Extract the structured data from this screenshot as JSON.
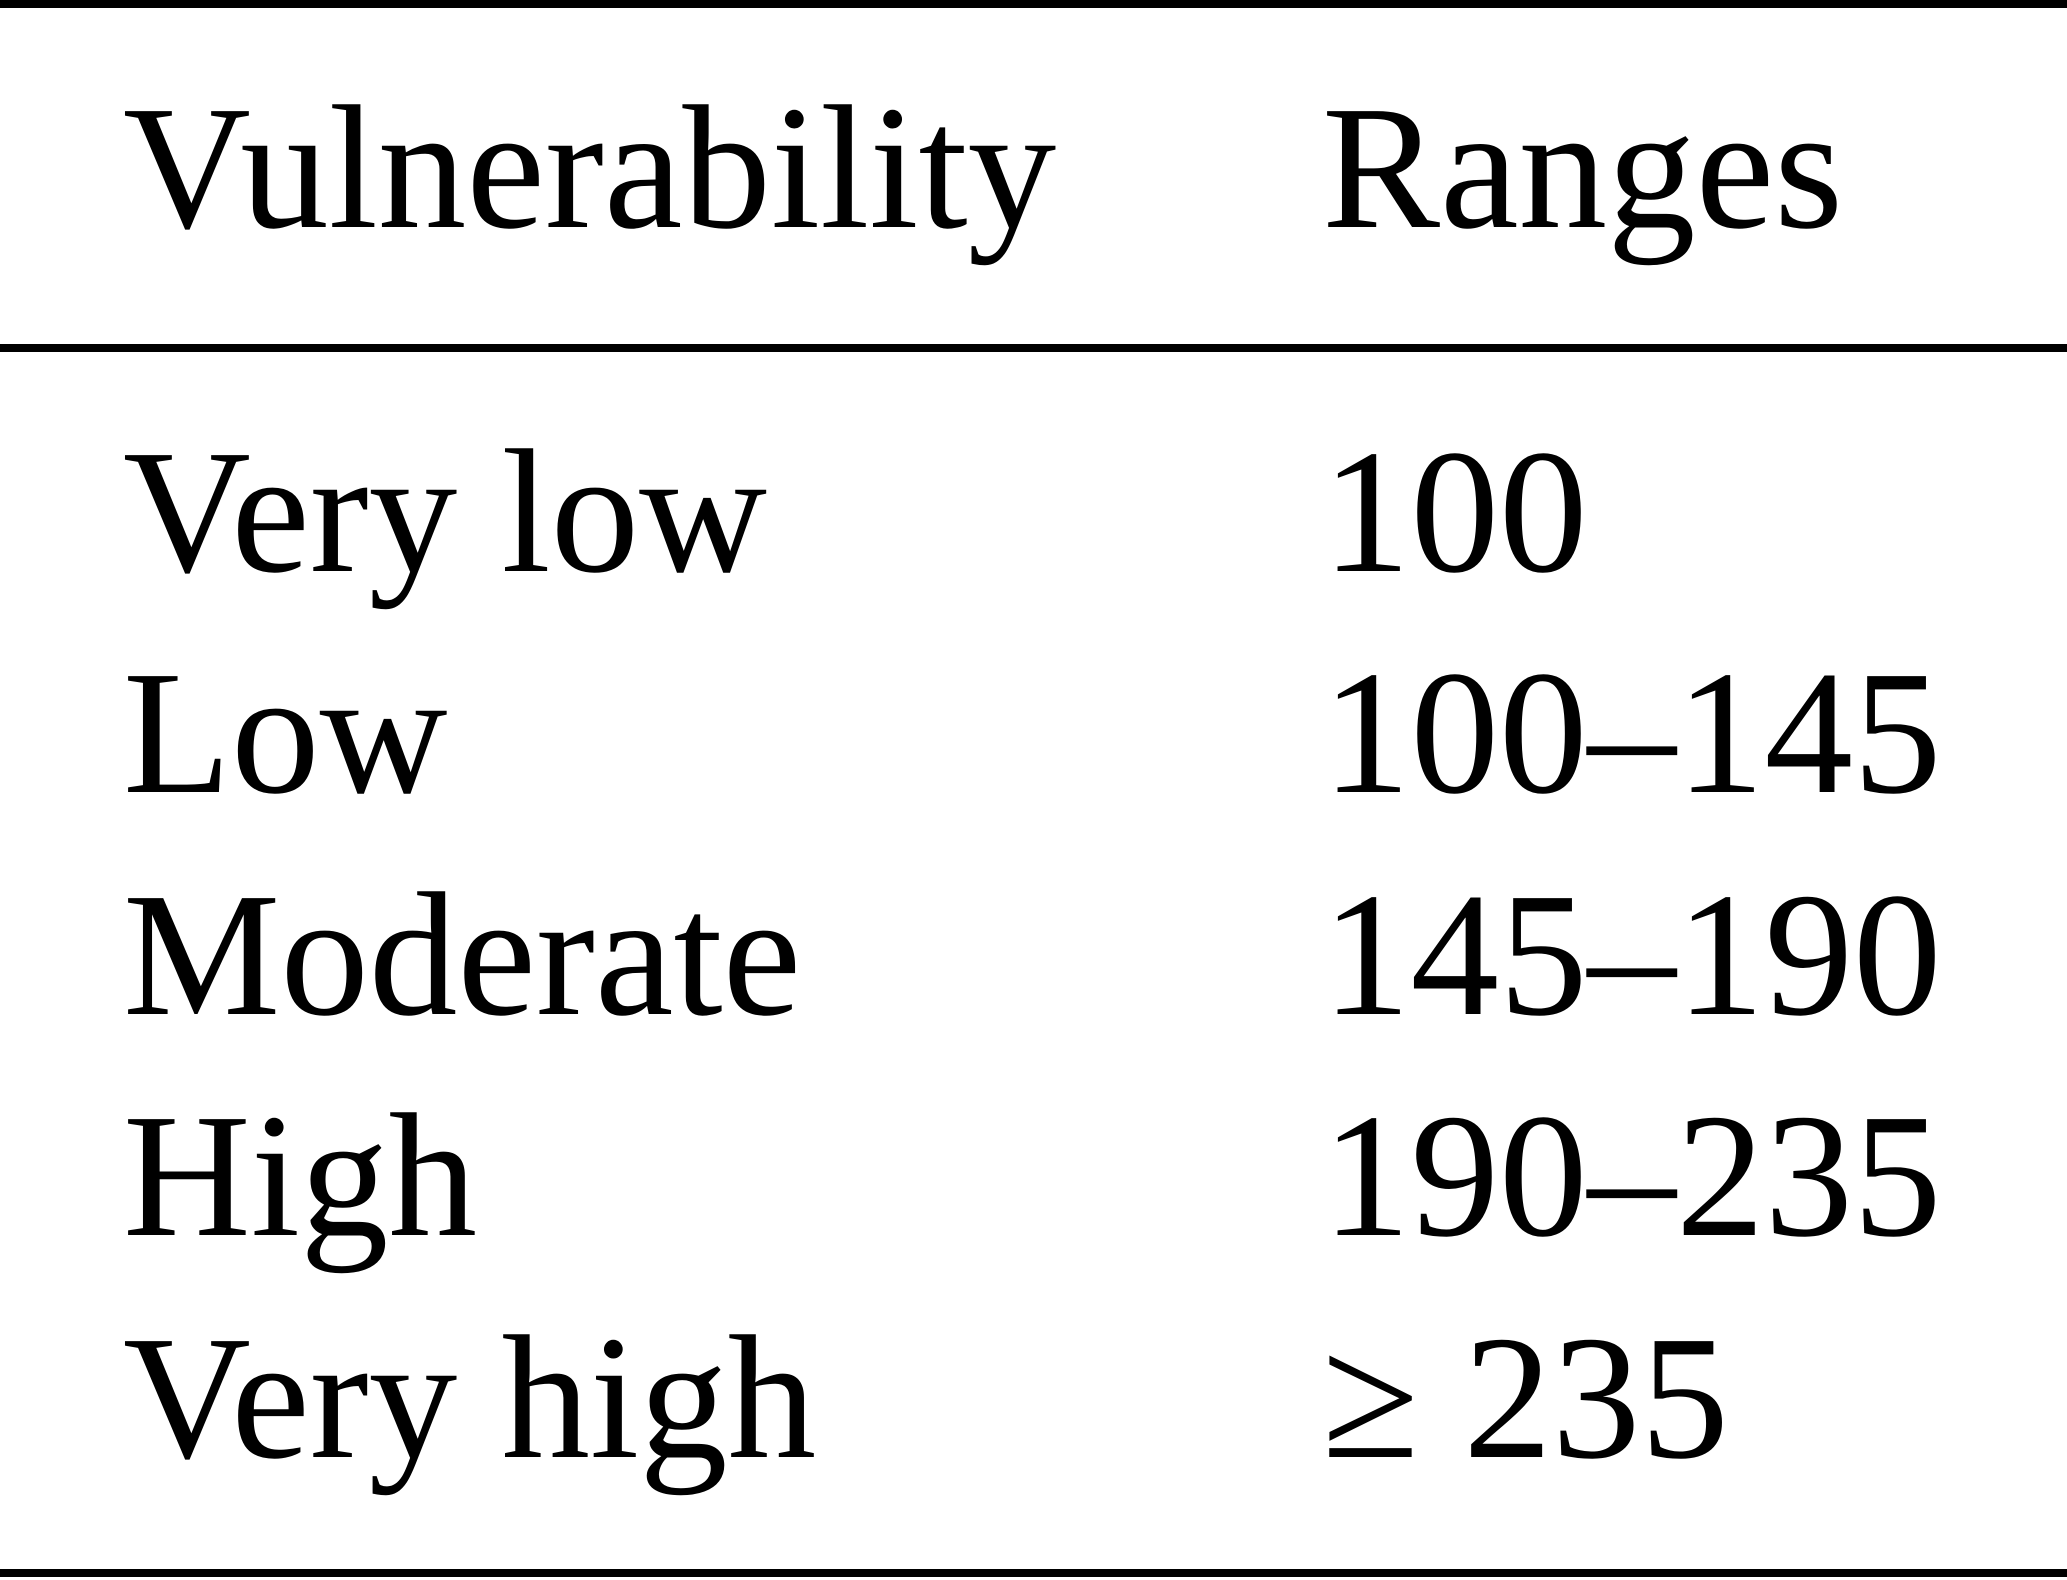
{
  "table": {
    "header": [
      "Vulnerability",
      "Ranges"
    ],
    "rows": [
      [
        "Very low",
        "100"
      ],
      [
        "Low",
        "100–145"
      ],
      [
        "Moderate",
        "145–190"
      ],
      [
        "High",
        "190–235"
      ],
      [
        "Very high",
        "≥ 235"
      ]
    ]
  }
}
